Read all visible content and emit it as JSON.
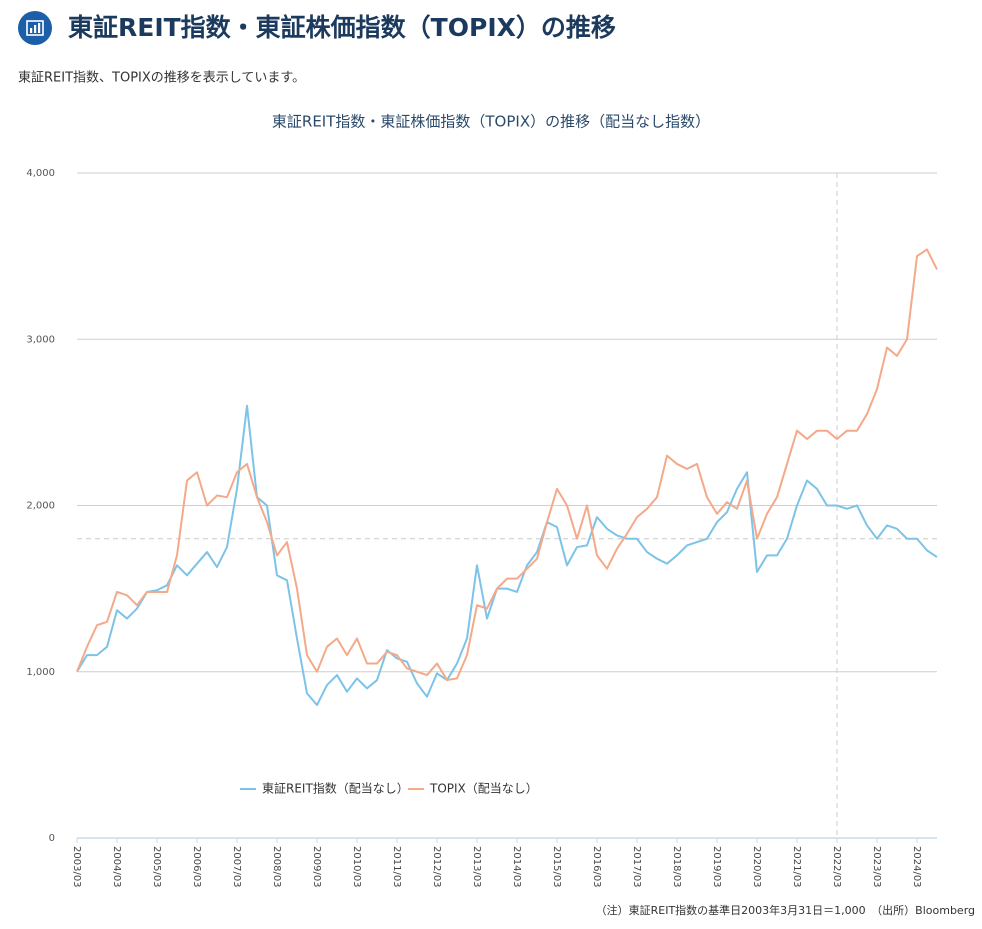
{
  "header": {
    "title": "東証REIT指数・東証株価指数（TOPIX）の推移",
    "subtitle": "東証REIT指数、TOPIXの推移を表示しています。"
  },
  "chart_data": {
    "type": "line",
    "title": "東証REIT指数・東証株価指数（TOPIX）の推移（配当なし指数）",
    "x": [
      "2003/03",
      "2003/06",
      "2003/09",
      "2003/12",
      "2004/03",
      "2004/06",
      "2004/09",
      "2004/12",
      "2005/03",
      "2005/06",
      "2005/09",
      "2005/12",
      "2006/03",
      "2006/06",
      "2006/09",
      "2006/12",
      "2007/03",
      "2007/06",
      "2007/09",
      "2007/12",
      "2008/03",
      "2008/06",
      "2008/09",
      "2008/12",
      "2009/03",
      "2009/06",
      "2009/09",
      "2009/12",
      "2010/03",
      "2010/06",
      "2010/09",
      "2010/12",
      "2011/03",
      "2011/06",
      "2011/09",
      "2011/12",
      "2012/03",
      "2012/06",
      "2012/09",
      "2012/12",
      "2013/03",
      "2013/06",
      "2013/09",
      "2013/12",
      "2014/03",
      "2014/06",
      "2014/09",
      "2014/12",
      "2015/03",
      "2015/06",
      "2015/09",
      "2015/12",
      "2016/03",
      "2016/06",
      "2016/09",
      "2016/12",
      "2017/03",
      "2017/06",
      "2017/09",
      "2017/12",
      "2018/03",
      "2018/06",
      "2018/09",
      "2018/12",
      "2019/03",
      "2019/06",
      "2019/09",
      "2019/12",
      "2020/03",
      "2020/06",
      "2020/09",
      "2020/12",
      "2021/03",
      "2021/06",
      "2021/09",
      "2021/12",
      "2022/03",
      "2022/06",
      "2022/09",
      "2022/12",
      "2023/03",
      "2023/06",
      "2023/09",
      "2023/12",
      "2024/03",
      "2024/06",
      "2024/09"
    ],
    "series": [
      {
        "name": "東証REIT指数（配当なし）",
        "color": "#7dc3e8",
        "values": [
          1000,
          1100,
          1100,
          1150,
          1370,
          1320,
          1380,
          1480,
          1490,
          1520,
          1640,
          1580,
          1650,
          1720,
          1630,
          1750,
          2100,
          2600,
          2050,
          2000,
          1580,
          1550,
          1200,
          870,
          800,
          920,
          980,
          880,
          960,
          900,
          950,
          1130,
          1080,
          1060,
          930,
          850,
          990,
          950,
          1050,
          1200,
          1640,
          1320,
          1500,
          1500,
          1480,
          1640,
          1720,
          1900,
          1870,
          1640,
          1750,
          1760,
          1930,
          1860,
          1820,
          1800,
          1800,
          1720,
          1680,
          1650,
          1700,
          1760,
          1780,
          1800,
          1900,
          1960,
          2100,
          2200,
          1600,
          1700,
          1700,
          1800,
          2000,
          2150,
          2100,
          2000,
          2000,
          1980,
          2000,
          1880,
          1800,
          1880,
          1860,
          1800,
          1800,
          1730,
          1690
        ]
      },
      {
        "name": "TOPIX（配当なし）",
        "color": "#f4a98a",
        "values": [
          1000,
          1150,
          1280,
          1300,
          1480,
          1460,
          1400,
          1480,
          1480,
          1480,
          1700,
          2150,
          2200,
          2000,
          2060,
          2050,
          2200,
          2250,
          2050,
          1900,
          1700,
          1780,
          1500,
          1100,
          1000,
          1150,
          1200,
          1100,
          1200,
          1050,
          1050,
          1120,
          1100,
          1020,
          1000,
          980,
          1050,
          950,
          960,
          1100,
          1400,
          1380,
          1500,
          1560,
          1560,
          1620,
          1680,
          1900,
          2100,
          2000,
          1800,
          2000,
          1700,
          1620,
          1740,
          1830,
          1930,
          1980,
          2050,
          2300,
          2250,
          2220,
          2250,
          2050,
          1950,
          2020,
          1980,
          2150,
          1800,
          1950,
          2050,
          2250,
          2450,
          2400,
          2450,
          2450,
          2400,
          2450,
          2450,
          2550,
          2700,
          2950,
          2900,
          3000,
          3500,
          3540,
          3420
        ]
      }
    ],
    "xlim": [
      "2003/03",
      "2024/09"
    ],
    "xticks": [
      "2003/03",
      "2004/03",
      "2005/03",
      "2006/03",
      "2007/03",
      "2008/03",
      "2009/03",
      "2010/03",
      "2011/03",
      "2012/03",
      "2013/03",
      "2014/03",
      "2015/03",
      "2016/03",
      "2017/03",
      "2018/03",
      "2019/03",
      "2020/03",
      "2021/03",
      "2022/03",
      "2023/03",
      "2024/03"
    ],
    "ylim": [
      0,
      4000
    ],
    "yticks": [
      0,
      {
        "value": 1000,
        "label": "1,000"
      },
      {
        "value": 2000,
        "label": "2,000"
      },
      {
        "value": 3000,
        "label": "3,000"
      },
      {
        "value": 4000,
        "label": "4,000"
      }
    ],
    "grid": true,
    "crosshair": {
      "x": "2022/03",
      "y": 1800
    },
    "note": "（注）東証REIT指数の基準日2003年3月31日＝1,000　（出所）Bloomberg"
  }
}
